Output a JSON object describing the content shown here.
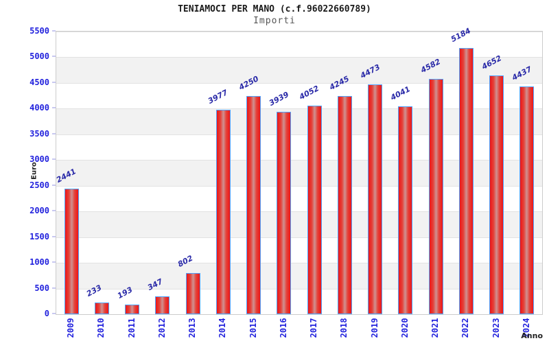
{
  "title": "TENIAMOCI PER MANO (c.f.96022660789)",
  "subtitle": "Importi",
  "axis": {
    "y_title": "Euro",
    "x_title": "Anno"
  },
  "chart_data": {
    "type": "bar",
    "title": "TENIAMOCI PER MANO (c.f.96022660789)",
    "subtitle": "Importi",
    "xlabel": "Anno",
    "ylabel": "Euro",
    "categories": [
      "2009",
      "2010",
      "2011",
      "2012",
      "2013",
      "2014",
      "2015",
      "2016",
      "2017",
      "2018",
      "2019",
      "2020",
      "2021",
      "2022",
      "2023",
      "2024"
    ],
    "values": [
      2441,
      233,
      193,
      347,
      802,
      3977,
      4250,
      3939,
      4052,
      4245,
      4473,
      4041,
      4582,
      5184,
      4652,
      4437
    ],
    "ylim": [
      0,
      5500
    ],
    "ytick_step": 500,
    "grid": true,
    "banded_background": true,
    "legend": "none"
  },
  "colors": {
    "bar_fill": "#ee1616",
    "bar_fill_light": "#cf9292",
    "bar_border": "#4da3ff",
    "tick_label_blue": "#2222dd",
    "value_label_navy": "#2a2aa8",
    "band_gray": "#f2f2f2",
    "gridline": "#e2e2e2",
    "plot_border": "#cccccc",
    "title_black": "#1a1a1a",
    "subtitle_gray": "#555555"
  }
}
